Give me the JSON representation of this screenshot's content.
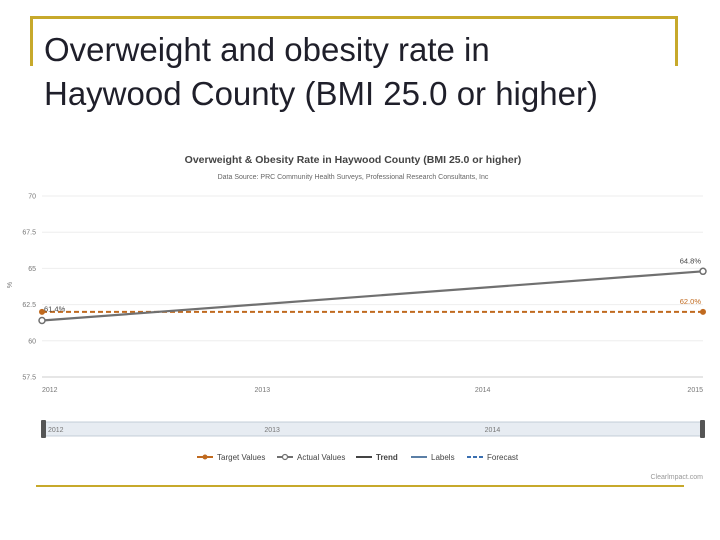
{
  "slide": {
    "title": "Overweight and obesity rate in Haywood County (BMI 25.0 or higher)"
  },
  "colors": {
    "accent": "#c7a92b",
    "actual": "#707070",
    "target": "#c06a1f",
    "trend": "#444444",
    "labels_line": "#5b7fa6",
    "forecast": "#3a6fb0"
  },
  "chart_data": {
    "type": "line",
    "title": "Overweight & Obesity Rate in Haywood County (BMI 25.0 or higher)",
    "subtitle": "Data Source: PRC Community Health Surveys, Professional Research Consultants, Inc",
    "ylabel": "%",
    "xlabel": "",
    "x_range": [
      2012,
      2015
    ],
    "ylim": [
      57.5,
      70
    ],
    "yticks": [
      "70",
      "67.5",
      "65",
      "62.5",
      "60",
      "57.5"
    ],
    "xticks": [
      "2012",
      "2013",
      "2014",
      "2015"
    ],
    "series": [
      {
        "name": "Actual Values",
        "x": [
          2012,
          2015
        ],
        "values": [
          61.4,
          64.8
        ],
        "labels": [
          "61.4%",
          "64.8%"
        ]
      },
      {
        "name": "Target Values",
        "x": [
          2012,
          2015
        ],
        "values": [
          62.0,
          62.0
        ],
        "labels": [
          "",
          "62.0%"
        ]
      }
    ],
    "navigator": {
      "labels": [
        "2012",
        "2013",
        "2014"
      ]
    },
    "legend": [
      {
        "label": "Target Values",
        "kind": "target"
      },
      {
        "label": "Actual Values",
        "kind": "actual"
      },
      {
        "label": "Trend",
        "kind": "trend"
      },
      {
        "label": "Labels",
        "kind": "labels"
      },
      {
        "label": "Forecast",
        "kind": "forecast"
      }
    ],
    "credit": "Clearlmpact.com"
  }
}
